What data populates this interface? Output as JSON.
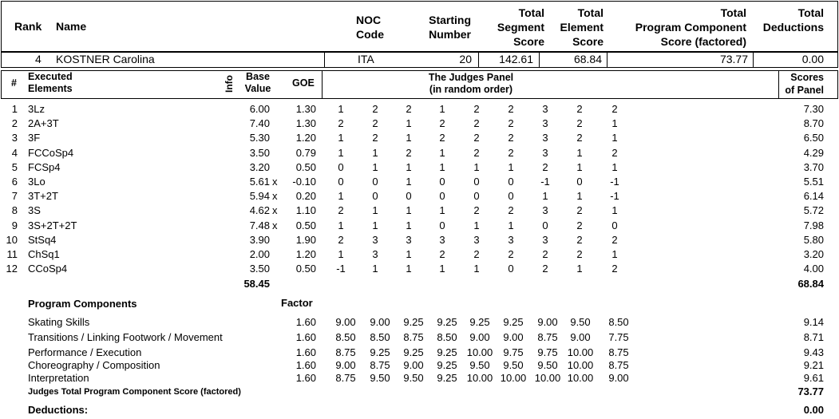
{
  "header": {
    "rank_label": "Rank",
    "name_label": "Name",
    "noc_label": [
      "NOC",
      "Code"
    ],
    "starting_label": [
      "Starting",
      "Number"
    ],
    "tss_label": [
      "Total",
      "Segment",
      "Score"
    ],
    "tes_label": [
      "Total",
      "Element",
      "Score"
    ],
    "pcs_label": [
      "Total",
      "Program Component",
      "Score (factored)"
    ],
    "ded_label": [
      "Total",
      "Deductions"
    ]
  },
  "skater": {
    "rank": "4",
    "name": "KOSTNER Carolina",
    "noc": "ITA",
    "starting_number": "20",
    "total_segment_score": "142.61",
    "total_element_score": "68.84",
    "total_pcs": "73.77",
    "total_deductions": "0.00"
  },
  "elements_header": {
    "num": "#",
    "executed": [
      "Executed",
      "Elements"
    ],
    "info": "Info",
    "base": [
      "Base",
      "Value"
    ],
    "goe": "GOE",
    "panel": [
      "The Judges Panel",
      "(in random order)"
    ],
    "scores": [
      "Scores",
      "of Panel"
    ]
  },
  "elements": [
    {
      "num": "1",
      "name": "3Lz",
      "base": "6.00",
      "x": "",
      "goe": "1.30",
      "judges": [
        "1",
        "2",
        "2",
        "1",
        "2",
        "2",
        "3",
        "2",
        "2"
      ],
      "score": "7.30"
    },
    {
      "num": "2",
      "name": "2A+3T",
      "base": "7.40",
      "x": "",
      "goe": "1.30",
      "judges": [
        "2",
        "2",
        "1",
        "2",
        "2",
        "2",
        "3",
        "2",
        "1"
      ],
      "score": "8.70"
    },
    {
      "num": "3",
      "name": "3F",
      "base": "5.30",
      "x": "",
      "goe": "1.20",
      "judges": [
        "1",
        "2",
        "1",
        "2",
        "2",
        "2",
        "3",
        "2",
        "1"
      ],
      "score": "6.50"
    },
    {
      "num": "4",
      "name": "FCCoSp4",
      "base": "3.50",
      "x": "",
      "goe": "0.79",
      "judges": [
        "1",
        "1",
        "2",
        "1",
        "2",
        "2",
        "3",
        "1",
        "2"
      ],
      "score": "4.29"
    },
    {
      "num": "5",
      "name": "FCSp4",
      "base": "3.20",
      "x": "",
      "goe": "0.50",
      "judges": [
        "0",
        "1",
        "1",
        "1",
        "1",
        "1",
        "2",
        "1",
        "1"
      ],
      "score": "3.70"
    },
    {
      "num": "6",
      "name": "3Lo",
      "base": "5.61",
      "x": "x",
      "goe": "-0.10",
      "judges": [
        "0",
        "0",
        "1",
        "0",
        "0",
        "0",
        "-1",
        "0",
        "-1"
      ],
      "score": "5.51"
    },
    {
      "num": "7",
      "name": "3T+2T",
      "base": "5.94",
      "x": "x",
      "goe": "0.20",
      "judges": [
        "1",
        "0",
        "0",
        "0",
        "0",
        "0",
        "1",
        "1",
        "-1"
      ],
      "score": "6.14"
    },
    {
      "num": "8",
      "name": "3S",
      "base": "4.62",
      "x": "x",
      "goe": "1.10",
      "judges": [
        "2",
        "1",
        "1",
        "1",
        "2",
        "2",
        "3",
        "2",
        "1"
      ],
      "score": "5.72"
    },
    {
      "num": "9",
      "name": "3S+2T+2T",
      "base": "7.48",
      "x": "x",
      "goe": "0.50",
      "judges": [
        "1",
        "1",
        "1",
        "0",
        "1",
        "1",
        "0",
        "2",
        "0"
      ],
      "score": "7.98"
    },
    {
      "num": "10",
      "name": "StSq4",
      "base": "3.90",
      "x": "",
      "goe": "1.90",
      "judges": [
        "2",
        "3",
        "3",
        "3",
        "3",
        "3",
        "3",
        "2",
        "2"
      ],
      "score": "5.80"
    },
    {
      "num": "11",
      "name": "ChSq1",
      "base": "2.00",
      "x": "",
      "goe": "1.20",
      "judges": [
        "1",
        "3",
        "1",
        "2",
        "2",
        "2",
        "2",
        "2",
        "1"
      ],
      "score": "3.20"
    },
    {
      "num": "12",
      "name": "CCoSp4",
      "base": "3.50",
      "x": "",
      "goe": "0.50",
      "judges": [
        "-1",
        "1",
        "1",
        "1",
        "1",
        "0",
        "2",
        "1",
        "2"
      ],
      "score": "4.00"
    }
  ],
  "elements_totals": {
    "base_total": "58.45",
    "score_total": "68.84"
  },
  "components_header": {
    "title": "Program Components",
    "factor": "Factor"
  },
  "components": [
    {
      "name": "Skating Skills",
      "factor": "1.60",
      "judges": [
        "9.00",
        "9.00",
        "9.25",
        "9.25",
        "9.25",
        "9.25",
        "9.00",
        "9.50",
        "8.50"
      ],
      "score": "9.14"
    },
    {
      "name": "Transitions / Linking Footwork / Movement",
      "factor": "1.60",
      "judges": [
        "8.50",
        "8.50",
        "8.75",
        "8.50",
        "9.00",
        "9.00",
        "8.75",
        "9.00",
        "7.75"
      ],
      "score": "8.71"
    },
    {
      "name": "Performance / Execution",
      "factor": "1.60",
      "judges": [
        "8.75",
        "9.25",
        "9.25",
        "9.25",
        "10.00",
        "9.75",
        "9.75",
        "10.00",
        "8.75"
      ],
      "score": "9.43"
    },
    {
      "name": "Choreography / Composition",
      "factor": "1.60",
      "judges": [
        "9.00",
        "8.75",
        "9.00",
        "9.25",
        "9.50",
        "9.50",
        "9.50",
        "10.00",
        "8.75"
      ],
      "score": "9.21"
    },
    {
      "name": "Interpretation",
      "factor": "1.60",
      "judges": [
        "8.75",
        "9.50",
        "9.50",
        "9.25",
        "10.00",
        "10.00",
        "10.00",
        "10.00",
        "9.00"
      ],
      "score": "9.61"
    }
  ],
  "components_total": {
    "label": "Judges Total Program Component Score (factored)",
    "value": "73.77"
  },
  "deductions": {
    "label": "Deductions:",
    "value": "0.00"
  }
}
